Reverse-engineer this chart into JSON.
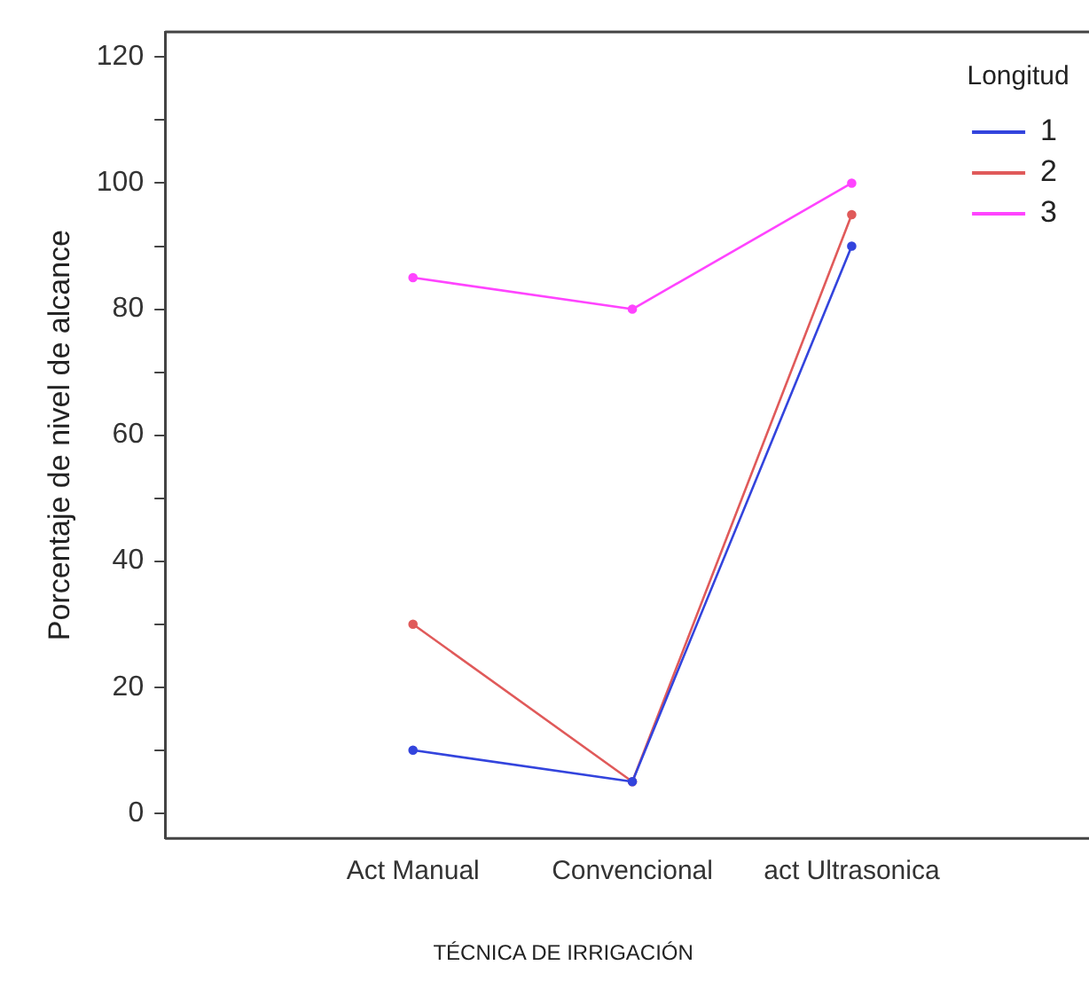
{
  "chart_data": {
    "type": "line",
    "xlabel": "TÉCNICA DE IRRIGACIÓN",
    "ylabel": "Porcentaje de nivel de alcance",
    "legend_title": "Longitud",
    "legend": "top right",
    "marker": "circle",
    "grid": false,
    "categories": [
      "Act Manual",
      "Convencional",
      "act Ultrasonica"
    ],
    "ylim": [
      -4,
      124
    ],
    "yticks": [
      0,
      {
        "value": 10,
        "label": null
      },
      20,
      {
        "value": 30,
        "label": null
      },
      40,
      {
        "value": 50,
        "label": null
      },
      60,
      {
        "value": 70,
        "label": null
      },
      80,
      {
        "value": 90,
        "label": null
      },
      100,
      {
        "value": 110,
        "label": null
      },
      120
    ],
    "series": [
      {
        "name": "1",
        "color": "#3344dd",
        "values": [
          10,
          5,
          90
        ]
      },
      {
        "name": "2",
        "color": "#e05a5a",
        "values": [
          30,
          5,
          95
        ]
      },
      {
        "name": "3",
        "color": "#ff44ff",
        "values": [
          85,
          80,
          100
        ]
      }
    ]
  }
}
